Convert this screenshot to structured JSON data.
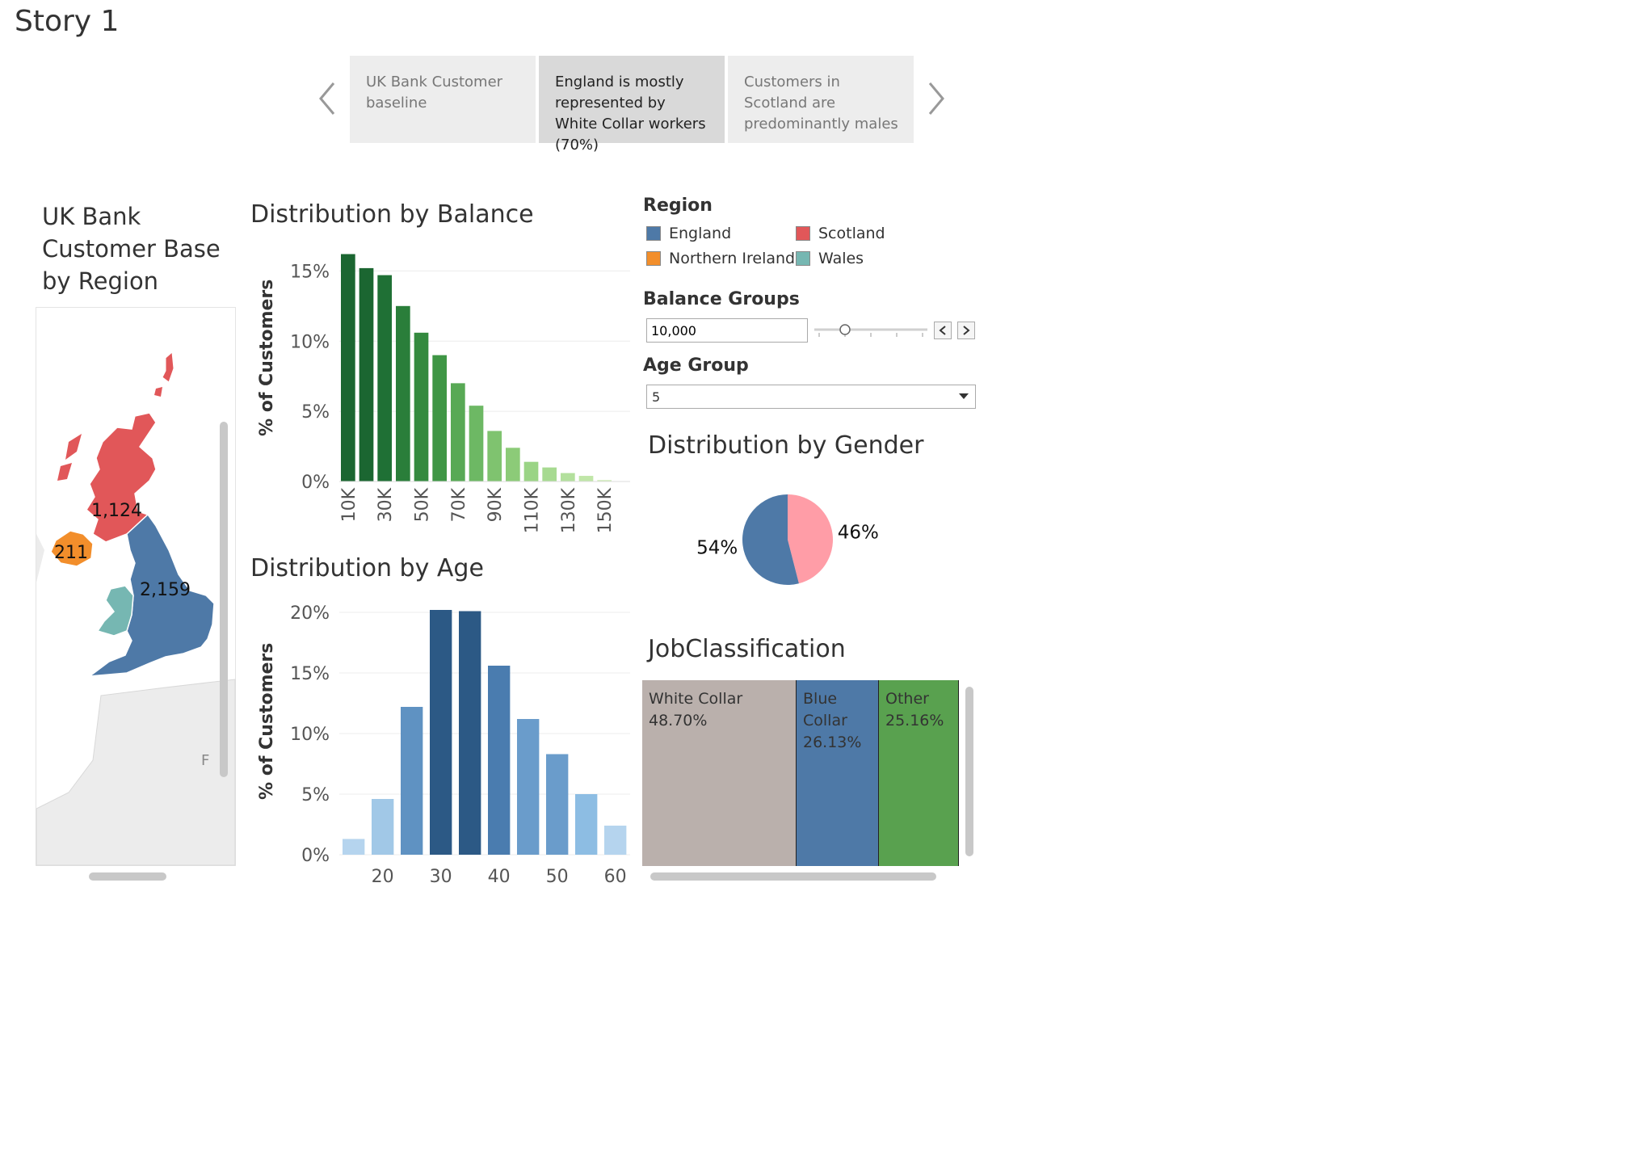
{
  "story": {
    "title": "Story 1",
    "points": [
      {
        "label": "UK Bank Customer baseline",
        "active": false
      },
      {
        "label": "England is mostly represented by White Collar workers (70%)",
        "active": true
      },
      {
        "label": "Customers in Scotland are predominantly males",
        "active": false
      }
    ]
  },
  "map": {
    "title": "UK Bank Customer Base by Region",
    "labels": {
      "scotland": "1,124",
      "northern_ireland": "211",
      "england": "2,159",
      "france_edge": "F"
    }
  },
  "balance_chart": {
    "title": "Distribution by Balance",
    "ylabel": "% of Customers",
    "yticks": [
      "15%",
      "10%",
      "5%",
      "0%"
    ],
    "xticks": [
      "10K",
      "30K",
      "50K",
      "70K",
      "90K",
      "110K",
      "130K",
      "150K"
    ]
  },
  "age_chart": {
    "title": "Distribution by Age",
    "ylabel": "% of Customers",
    "yticks": [
      "20%",
      "15%",
      "10%",
      "5%",
      "0%"
    ],
    "xticks": [
      "20",
      "30",
      "40",
      "50",
      "60"
    ]
  },
  "region_legend": {
    "title": "Region",
    "items": [
      {
        "label": "England",
        "color": "#4e79a7"
      },
      {
        "label": "Scotland",
        "color": "#e15759"
      },
      {
        "label": "Northern Ireland",
        "color": "#f28e2b"
      },
      {
        "label": "Wales",
        "color": "#76b7b2"
      }
    ]
  },
  "balance_filter": {
    "title": "Balance Groups",
    "value": "10,000",
    "slider_fraction": 0.25
  },
  "age_filter": {
    "title": "Age Group",
    "value": "5"
  },
  "gender_chart": {
    "title": "Distribution by Gender",
    "slices": [
      {
        "label": "46%",
        "value": 46,
        "color": "#ff9da7"
      },
      {
        "label": "54%",
        "value": 54,
        "color": "#4e79a7"
      }
    ]
  },
  "job_chart": {
    "title": "JobClassification",
    "blocks": [
      {
        "name": "White Collar",
        "pct": "48.70%",
        "value": 48.7,
        "color": "#bab0ac"
      },
      {
        "name": "Blue Collar",
        "pct": "26.13%",
        "value": 26.13,
        "color": "#4e79a7"
      },
      {
        "name": "Other",
        "pct": "25.16%",
        "value": 25.16,
        "color": "#59a14f"
      }
    ]
  },
  "chart_data": [
    {
      "type": "bar",
      "title": "Distribution by Balance",
      "xlabel": "",
      "ylabel": "% of Customers",
      "ylim": [
        0,
        16
      ],
      "categories": [
        "10K",
        "20K",
        "30K",
        "40K",
        "50K",
        "60K",
        "70K",
        "80K",
        "90K",
        "100K",
        "110K",
        "120K",
        "130K",
        "140K",
        "150K"
      ],
      "values": [
        16.2,
        15.2,
        14.7,
        12.5,
        10.6,
        9.0,
        7.0,
        5.4,
        3.6,
        2.4,
        1.4,
        1.0,
        0.6,
        0.4,
        0.1
      ],
      "colors": [
        "#1b6631",
        "#1b6631",
        "#1f7035",
        "#2a7e3a",
        "#348a3f",
        "#3f9645",
        "#58a955",
        "#6db864",
        "#7fc36f",
        "#8ccb78",
        "#9ad485",
        "#a7da91",
        "#b3e09d",
        "#c0e6a8",
        "#cdebb4"
      ],
      "grid": true
    },
    {
      "type": "bar",
      "title": "Distribution by Age",
      "xlabel": "",
      "ylabel": "% of Customers",
      "ylim": [
        0,
        20
      ],
      "categories": [
        "15",
        "20",
        "25",
        "30",
        "35",
        "40",
        "45",
        "50",
        "55",
        "60"
      ],
      "values": [
        1.3,
        4.6,
        12.2,
        20.2,
        20.1,
        15.6,
        11.2,
        8.3,
        5.0,
        2.4
      ],
      "colors": [
        "#b5d4ee",
        "#a1c8e7",
        "#5f92c2",
        "#2c5985",
        "#2c5985",
        "#4a7caf",
        "#6a9ccb",
        "#6a9ccb",
        "#8dbde3",
        "#b5d4ee"
      ],
      "grid": true
    },
    {
      "type": "pie",
      "title": "Distribution by Gender",
      "labels": [
        "46%",
        "54%"
      ],
      "values": [
        46,
        54
      ]
    },
    {
      "type": "bar",
      "title": "JobClassification",
      "categories": [
        "White Collar",
        "Blue Collar",
        "Other"
      ],
      "values": [
        48.7,
        26.13,
        25.16
      ]
    }
  ]
}
